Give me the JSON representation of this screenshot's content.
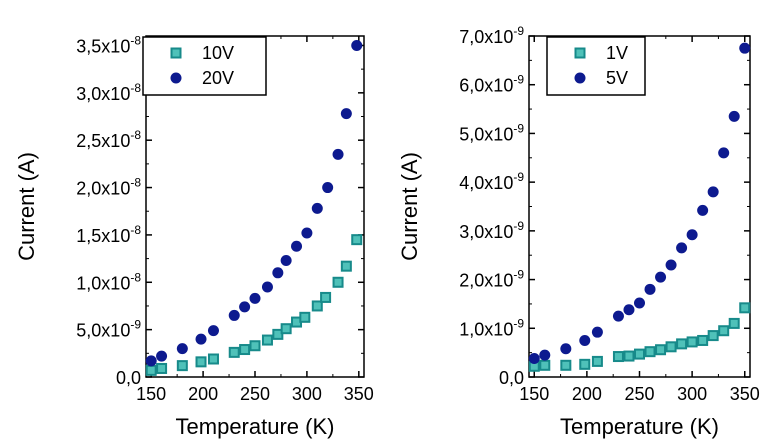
{
  "colors": {
    "teal": "#178a8a",
    "teal_light": "#4fc1b9",
    "navy": "#0d1a8f"
  },
  "chart_data": [
    {
      "type": "scatter",
      "xlabel": "Temperature (K)",
      "ylabel": "Current (A)",
      "xlim": [
        145,
        355
      ],
      "ylim": [
        0,
        3.6e-08
      ],
      "x_ticks": [
        150,
        200,
        250,
        300,
        350
      ],
      "y_ticks": [
        {
          "value": 0,
          "mantissa": "0,0",
          "exp": ""
        },
        {
          "value": 5e-09,
          "mantissa": "5,0x10",
          "exp": "-9"
        },
        {
          "value": 1e-08,
          "mantissa": "1,0x10",
          "exp": "-8"
        },
        {
          "value": 1.5e-08,
          "mantissa": "1,5x10",
          "exp": "-8"
        },
        {
          "value": 2e-08,
          "mantissa": "2,0x10",
          "exp": "-8"
        },
        {
          "value": 2.5e-08,
          "mantissa": "2,5x10",
          "exp": "-8"
        },
        {
          "value": 3e-08,
          "mantissa": "3,0x10",
          "exp": "-8"
        },
        {
          "value": 3.5e-08,
          "mantissa": "3,5x10",
          "exp": "-8"
        }
      ],
      "legend_position": "top-left",
      "series": [
        {
          "name": "10V",
          "marker": "square",
          "points": [
            [
              150,
              7e-10
            ],
            [
              160,
              9e-10
            ],
            [
              180,
              1.2e-09
            ],
            [
              198,
              1.6e-09
            ],
            [
              210,
              1.9e-09
            ],
            [
              230,
              2.6e-09
            ],
            [
              240,
              2.9e-09
            ],
            [
              250,
              3.3e-09
            ],
            [
              262,
              3.9e-09
            ],
            [
              272,
              4.5e-09
            ],
            [
              280,
              5.1e-09
            ],
            [
              290,
              5.8e-09
            ],
            [
              298,
              6.3e-09
            ],
            [
              310,
              7.5e-09
            ],
            [
              318,
              8.4e-09
            ],
            [
              330,
              1e-08
            ],
            [
              338,
              1.17e-08
            ],
            [
              348,
              1.45e-08
            ]
          ]
        },
        {
          "name": "20V",
          "marker": "circle",
          "points": [
            [
              150,
              1.7e-09
            ],
            [
              160,
              2.2e-09
            ],
            [
              180,
              3e-09
            ],
            [
              198,
              4e-09
            ],
            [
              210,
              4.9e-09
            ],
            [
              230,
              6.5e-09
            ],
            [
              240,
              7.4e-09
            ],
            [
              250,
              8.3e-09
            ],
            [
              262,
              9.5e-09
            ],
            [
              272,
              1.1e-08
            ],
            [
              280,
              1.23e-08
            ],
            [
              290,
              1.38e-08
            ],
            [
              300,
              1.52e-08
            ],
            [
              310,
              1.78e-08
            ],
            [
              320,
              2e-08
            ],
            [
              330,
              2.35e-08
            ],
            [
              338,
              2.78e-08
            ],
            [
              348,
              3.5e-08
            ]
          ]
        }
      ]
    },
    {
      "type": "scatter",
      "xlabel": "Temperature (K)",
      "ylabel": "Current (A)",
      "xlim": [
        145,
        355
      ],
      "ylim": [
        0,
        7e-09
      ],
      "x_ticks": [
        150,
        200,
        250,
        300,
        350
      ],
      "y_ticks": [
        {
          "value": 0,
          "mantissa": "0,0",
          "exp": ""
        },
        {
          "value": 1e-09,
          "mantissa": "1,0x10",
          "exp": "-9"
        },
        {
          "value": 2e-09,
          "mantissa": "2,0x10",
          "exp": "-9"
        },
        {
          "value": 3e-09,
          "mantissa": "3,0x10",
          "exp": "-9"
        },
        {
          "value": 4e-09,
          "mantissa": "4,0x10",
          "exp": "-9"
        },
        {
          "value": 5e-09,
          "mantissa": "5,0x10",
          "exp": "-9"
        },
        {
          "value": 6e-09,
          "mantissa": "6,0x10",
          "exp": "-9"
        },
        {
          "value": 7e-09,
          "mantissa": "7,0x10",
          "exp": "-9"
        }
      ],
      "legend_position": "top-left",
      "series": [
        {
          "name": "1V",
          "marker": "square",
          "points": [
            [
              150,
              2.2e-10
            ],
            [
              160,
              2.4e-10
            ],
            [
              180,
              2.4e-10
            ],
            [
              198,
              2.6e-10
            ],
            [
              210,
              3.2e-10
            ],
            [
              230,
              4.2e-10
            ],
            [
              240,
              4.3e-10
            ],
            [
              250,
              4.7e-10
            ],
            [
              260,
              5.2e-10
            ],
            [
              270,
              5.6e-10
            ],
            [
              280,
              6.2e-10
            ],
            [
              290,
              6.8e-10
            ],
            [
              300,
              7.2e-10
            ],
            [
              310,
              7.5e-10
            ],
            [
              320,
              8.5e-10
            ],
            [
              330,
              9.5e-10
            ],
            [
              340,
              1.1e-09
            ],
            [
              350,
              1.42e-09
            ]
          ]
        },
        {
          "name": "5V",
          "marker": "circle",
          "points": [
            [
              150,
              3.8e-10
            ],
            [
              160,
              4.5e-10
            ],
            [
              180,
              5.8e-10
            ],
            [
              198,
              7.5e-10
            ],
            [
              210,
              9.2e-10
            ],
            [
              230,
              1.25e-09
            ],
            [
              240,
              1.38e-09
            ],
            [
              250,
              1.52e-09
            ],
            [
              260,
              1.8e-09
            ],
            [
              270,
              2.05e-09
            ],
            [
              280,
              2.3e-09
            ],
            [
              290,
              2.65e-09
            ],
            [
              300,
              2.92e-09
            ],
            [
              310,
              3.42e-09
            ],
            [
              320,
              3.8e-09
            ],
            [
              330,
              4.6e-09
            ],
            [
              340,
              5.35e-09
            ],
            [
              350,
              6.75e-09
            ]
          ]
        }
      ]
    }
  ]
}
